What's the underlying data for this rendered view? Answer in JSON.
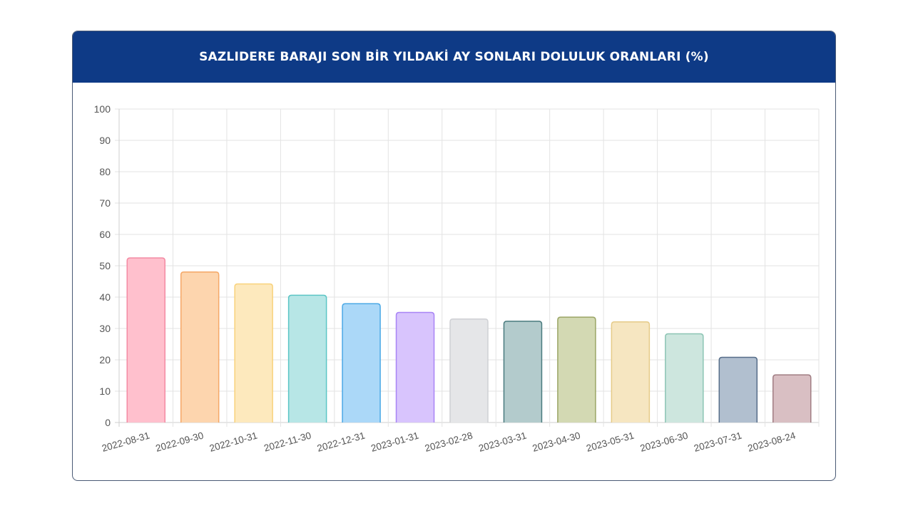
{
  "header": {
    "title": "SAZLIDERE BARAJI SON BİR YILDAKİ AY SONLARI DOLULUK ORANLARI (%)"
  },
  "colors": {
    "header_bg": "#0e3a86",
    "grid": "#e3e3e3",
    "axis": "#cfcfcf"
  },
  "chart_data": {
    "type": "bar",
    "title": "SAZLIDERE BARAJI SON BİR YILDAKİ AY SONLARI DOLULUK ORANLARI (%)",
    "xlabel": "",
    "ylabel": "",
    "ylim": [
      0,
      100
    ],
    "y_ticks": [
      0,
      10,
      20,
      30,
      40,
      50,
      60,
      70,
      80,
      90,
      100
    ],
    "grid": true,
    "legend": "none",
    "categories": [
      "2022-08-31",
      "2022-09-30",
      "2022-10-31",
      "2022-11-30",
      "2022-12-31",
      "2023-01-31",
      "2023-02-28",
      "2023-03-31",
      "2023-04-30",
      "2023-05-31",
      "2023-06-30",
      "2023-07-31",
      "2023-08-24"
    ],
    "values": [
      52.5,
      48.0,
      44.2,
      40.6,
      37.9,
      35.1,
      33.0,
      32.3,
      33.6,
      32.1,
      28.3,
      20.8,
      15.2
    ],
    "bar_fill_colors": [
      "#ffc0cd",
      "#fdd5ae",
      "#fde9bd",
      "#b7e6e6",
      "#abd8f8",
      "#d8c4fd",
      "#e5e6e8",
      "#b3cbcc",
      "#d3d9b3",
      "#f6e6c1",
      "#cde6de",
      "#b1bfcf",
      "#d9bfc3"
    ],
    "bar_border_colors": [
      "#f48aa3",
      "#f5a867",
      "#f8d27c",
      "#5bc5c5",
      "#4aa8e6",
      "#a884f5",
      "#cfd0d4",
      "#4a7b7e",
      "#9aa565",
      "#e6cb88",
      "#8cc4b4",
      "#566d89",
      "#a07d83"
    ]
  }
}
